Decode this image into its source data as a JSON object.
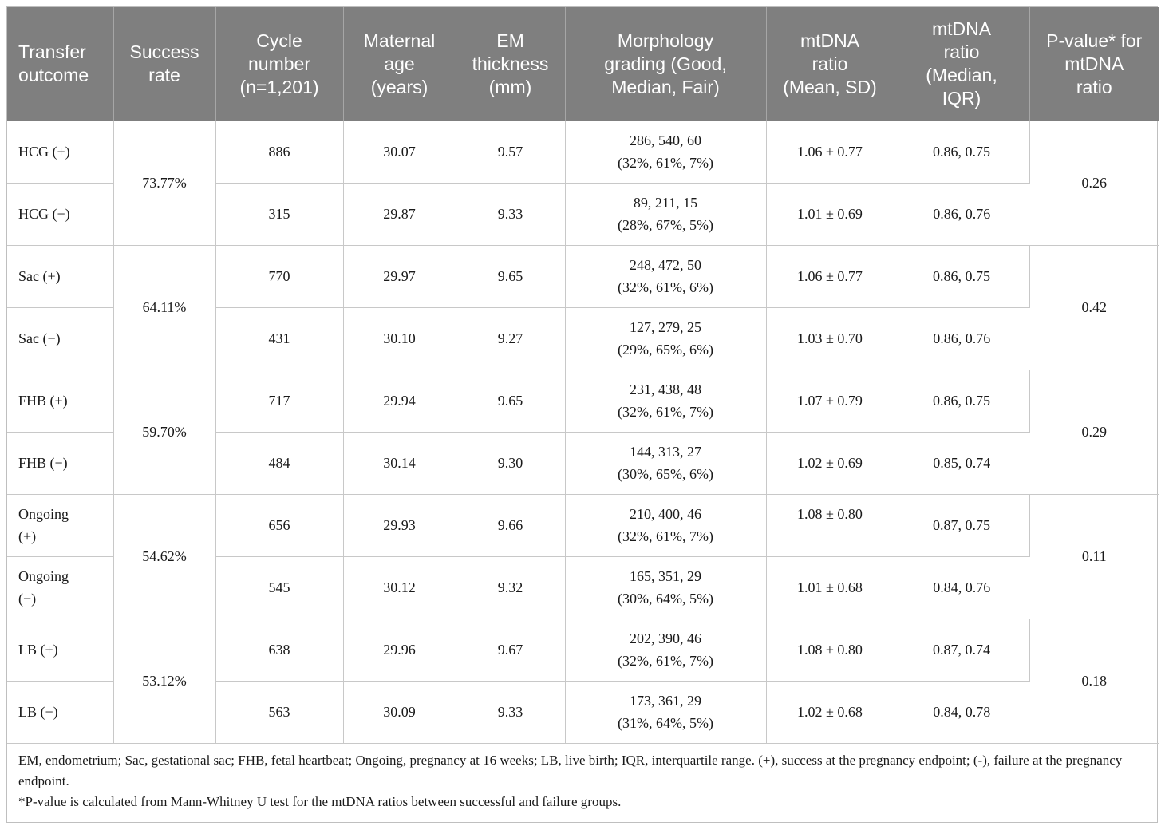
{
  "headers": [
    [
      "Transfer",
      "outcome"
    ],
    [
      "Success",
      "rate"
    ],
    [
      "Cycle",
      "number",
      "(n=1,201)"
    ],
    [
      "Maternal",
      "age",
      "(years)"
    ],
    [
      "EM",
      "thickness",
      "(mm)"
    ],
    [
      "Morphology",
      "grading (Good,",
      "Median, Fair)"
    ],
    [
      "mtDNA",
      "ratio",
      "(Mean, SD)"
    ],
    [
      "mtDNA",
      "ratio",
      "(Median,",
      "IQR)"
    ],
    [
      "P-value* for",
      "mtDNA",
      "ratio"
    ]
  ],
  "groups": [
    {
      "success_rate": "73.77%",
      "p_value": "0.26",
      "rows": [
        {
          "outcome": [
            "HCG (+)"
          ],
          "cycles": "886",
          "age": "30.07",
          "em": "9.57",
          "morph": [
            "286, 540, 60",
            "(32%, 61%, 7%)"
          ],
          "mean_sd": "1.06 ± 0.77",
          "median_iqr": "0.86, 0.75"
        },
        {
          "outcome": [
            "HCG (−)"
          ],
          "cycles": "315",
          "age": "29.87",
          "em": "9.33",
          "morph": [
            "89, 211, 15",
            "(28%, 67%, 5%)"
          ],
          "mean_sd": "1.01 ± 0.69",
          "median_iqr": "0.86, 0.76"
        }
      ]
    },
    {
      "success_rate": "64.11%",
      "p_value": "0.42",
      "rows": [
        {
          "outcome": [
            "Sac (+)"
          ],
          "cycles": "770",
          "age": "29.97",
          "em": "9.65",
          "morph": [
            "248, 472, 50",
            "(32%, 61%, 6%)"
          ],
          "mean_sd": "1.06 ± 0.77",
          "median_iqr": "0.86, 0.75"
        },
        {
          "outcome": [
            "Sac (−)"
          ],
          "cycles": "431",
          "age": "30.10",
          "em": "9.27",
          "morph": [
            "127, 279, 25",
            "(29%, 65%, 6%)"
          ],
          "mean_sd": "1.03 ± 0.70",
          "median_iqr": "0.86, 0.76"
        }
      ]
    },
    {
      "success_rate": "59.70%",
      "p_value": "0.29",
      "rows": [
        {
          "outcome": [
            "FHB (+)"
          ],
          "cycles": "717",
          "age": "29.94",
          "em": "9.65",
          "morph": [
            "231, 438, 48",
            "(32%, 61%, 7%)"
          ],
          "mean_sd": "1.07 ± 0.79",
          "median_iqr": "0.86, 0.75"
        },
        {
          "outcome": [
            "FHB (−)"
          ],
          "cycles": "484",
          "age": "30.14",
          "em": "9.30",
          "morph": [
            "144, 313, 27",
            "(30%, 65%, 6%)"
          ],
          "mean_sd": "1.02 ± 0.69",
          "median_iqr": "0.85, 0.74"
        }
      ]
    },
    {
      "success_rate": "54.62%",
      "p_value": "0.11",
      "rows": [
        {
          "outcome": [
            "Ongoing",
            "(+)"
          ],
          "cycles": "656",
          "age": "29.93",
          "em": "9.66",
          "morph": [
            "210, 400, 46",
            "(32%, 61%, 7%)"
          ],
          "mean_sd": "1.08 ± 0.80",
          "mean_top": true,
          "median_iqr": "0.87, 0.75"
        },
        {
          "outcome": [
            "Ongoing",
            "(−)"
          ],
          "cycles": "545",
          "age": "30.12",
          "em": "9.32",
          "morph": [
            "165, 351, 29",
            "(30%, 64%, 5%)"
          ],
          "mean_sd": "1.01 ± 0.68",
          "median_iqr": "0.84, 0.76"
        }
      ]
    },
    {
      "success_rate": "53.12%",
      "p_value": "0.18",
      "rows": [
        {
          "outcome": [
            "LB (+)"
          ],
          "cycles": "638",
          "age": "29.96",
          "em": "9.67",
          "morph": [
            "202, 390, 46",
            "(32%, 61%, 7%)"
          ],
          "mean_sd": "1.08 ± 0.80",
          "median_iqr": "0.87, 0.74"
        },
        {
          "outcome": [
            "LB (−)"
          ],
          "cycles": "563",
          "age": "30.09",
          "em": "9.33",
          "morph": [
            "173, 361, 29",
            "(31%, 64%, 5%)"
          ],
          "mean_sd": "1.02 ± 0.68",
          "median_iqr": "0.84, 0.78"
        }
      ]
    }
  ],
  "footnotes": [
    "EM, endometrium; Sac, gestational sac; FHB, fetal heartbeat; Ongoing, pregnancy at 16 weeks; LB, live birth; IQR, interquartile range. (+), success at the pregnancy endpoint; (-), failure at the pregnancy endpoint.",
    "*P-value is calculated from Mann-Whitney U test for the mtDNA ratios between successful and failure groups."
  ]
}
